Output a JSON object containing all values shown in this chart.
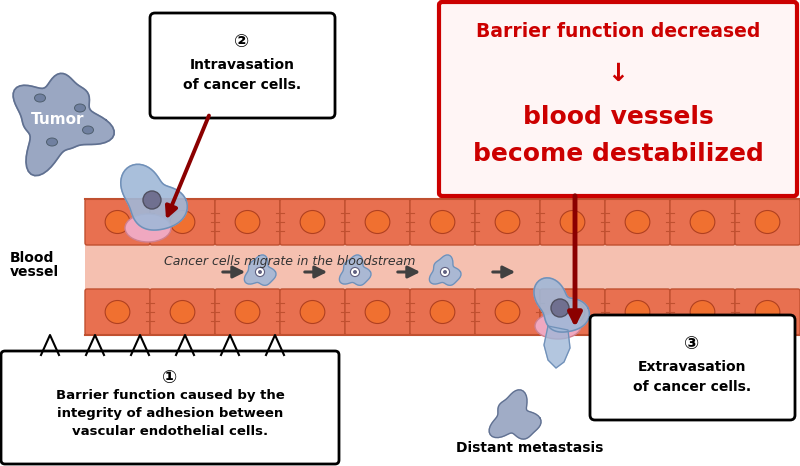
{
  "bg_color": "#ffffff",
  "bloodstream_color": "#f5c0b0",
  "cell_fill": "#e87050",
  "cell_border": "#c05030",
  "red_box_border": "#cc0000",
  "red_text_color": "#cc0000",
  "red_box_bg": "#fff5f5",
  "dark_red_arrow": "#8b0000",
  "callout1_text": [
    "①",
    "Barrier function caused by the",
    "integrity of adhesion between",
    "vascular endothelial cells."
  ],
  "callout2_text": [
    "②",
    "Intravasation",
    "of cancer cells."
  ],
  "callout3_text": [
    "③",
    "Extravasation",
    "of cancer cells."
  ],
  "red_box_line1": "Barrier function decreased",
  "red_box_line2": "↓",
  "red_box_line3": "blood vessels",
  "red_box_line4": "become destabilized",
  "migrate_text": "Cancer cells migrate in the bloodstream",
  "blood_vessel_label": [
    "Blood",
    "vessel"
  ],
  "tumor_label": "Tumor",
  "distant_metastasis": "Distant metastasis",
  "cancer_cell_body": "#a0b8d8",
  "cancer_cell_nucleus_outer": "#ffffff",
  "cancer_cell_nucleus_inner": "#606080",
  "tumor_color": "#8090b0"
}
